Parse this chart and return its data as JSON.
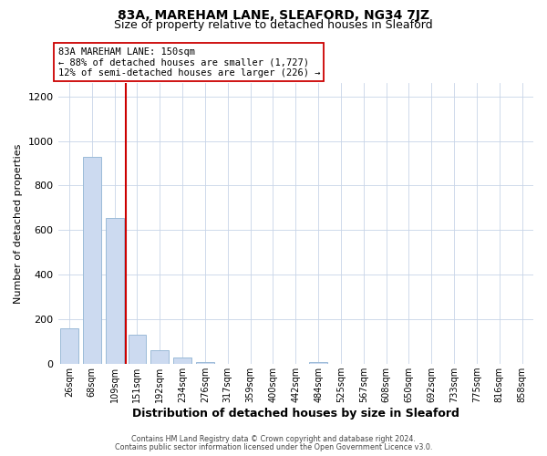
{
  "title": "83A, MAREHAM LANE, SLEAFORD, NG34 7JZ",
  "subtitle": "Size of property relative to detached houses in Sleaford",
  "xlabel": "Distribution of detached houses by size in Sleaford",
  "ylabel": "Number of detached properties",
  "bar_labels": [
    "26sqm",
    "68sqm",
    "109sqm",
    "151sqm",
    "192sqm",
    "234sqm",
    "276sqm",
    "317sqm",
    "359sqm",
    "400sqm",
    "442sqm",
    "484sqm",
    "525sqm",
    "567sqm",
    "608sqm",
    "650sqm",
    "692sqm",
    "733sqm",
    "775sqm",
    "816sqm",
    "858sqm"
  ],
  "bar_values": [
    160,
    930,
    655,
    130,
    60,
    28,
    10,
    0,
    0,
    0,
    0,
    10,
    0,
    0,
    0,
    0,
    0,
    0,
    0,
    0,
    0
  ],
  "bar_color": "#ccdaf0",
  "bar_edgecolor": "#9bbbd8",
  "vline_x_idx": 3,
  "vline_color": "#cc0000",
  "annotation_line1": "83A MAREHAM LANE: 150sqm",
  "annotation_line2": "← 88% of detached houses are smaller (1,727)",
  "annotation_line3": "12% of semi-detached houses are larger (226) →",
  "annotation_box_edgecolor": "#cc0000",
  "annotation_box_facecolor": "#ffffff",
  "ylim": [
    0,
    1260
  ],
  "yticks": [
    0,
    200,
    400,
    600,
    800,
    1000,
    1200
  ],
  "footer_line1": "Contains HM Land Registry data © Crown copyright and database right 2024.",
  "footer_line2": "Contains public sector information licensed under the Open Government Licence v3.0.",
  "background_color": "#ffffff",
  "grid_color": "#c8d4e8"
}
